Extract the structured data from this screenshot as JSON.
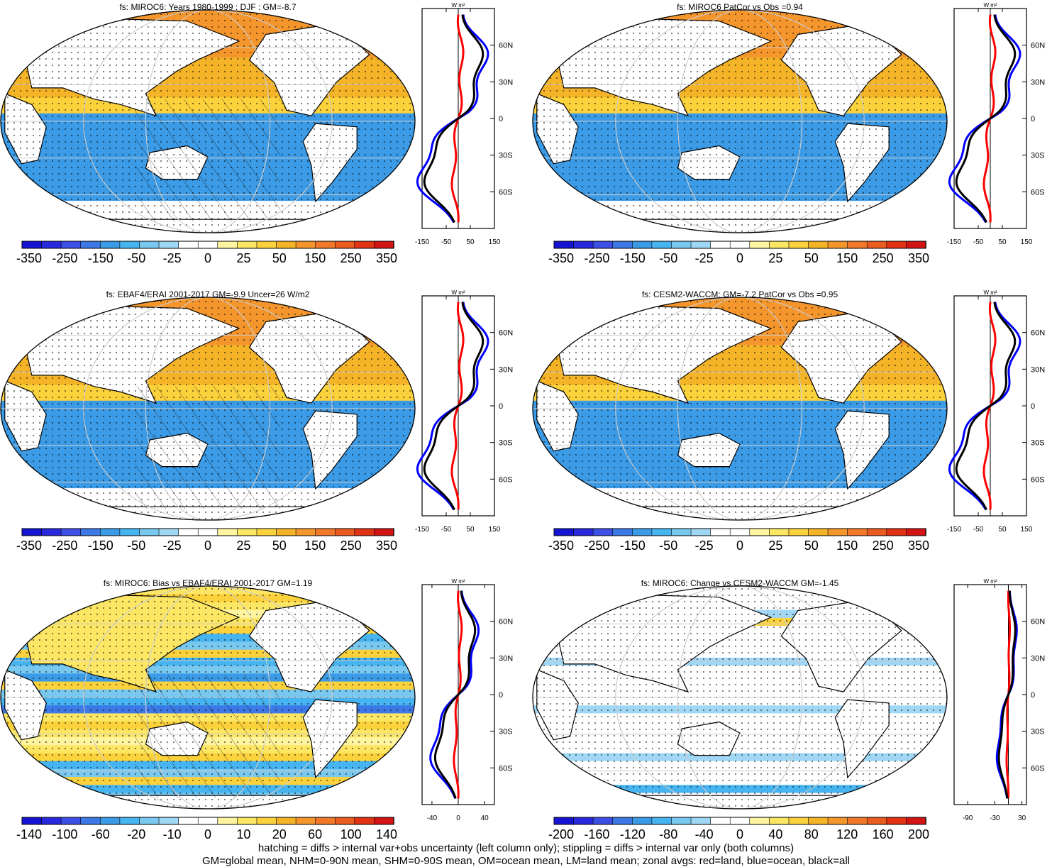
{
  "panels": [
    {
      "title": "fs: MIROC6: Years 1980-1999 : DJF : GM=-8.7",
      "colorbar_labels": [
        "-350",
        "-250",
        "-150",
        "-50",
        "-25",
        "0",
        "25",
        "50",
        "150",
        "250",
        "350"
      ],
      "zonal_ticks": [
        "-150",
        "-50",
        "50",
        "150"
      ],
      "zonal_range": [
        -150,
        150
      ],
      "map_pattern": "climatology",
      "hatching": true
    },
    {
      "title": "fs: MIROC6 PatCor vs Obs =0.94",
      "colorbar_labels": [
        "-350",
        "-250",
        "-150",
        "-50",
        "-25",
        "0",
        "25",
        "50",
        "150",
        "250",
        "350"
      ],
      "zonal_ticks": [
        "-150",
        "-50",
        "50",
        "150"
      ],
      "zonal_range": [
        -150,
        150
      ],
      "map_pattern": "climatology",
      "hatching": false
    },
    {
      "title": "fs: EBAF4/ERAI 2001-2017 GM=-9.9 Uncer=26 W/m2",
      "colorbar_labels": [
        "-350",
        "-250",
        "-150",
        "-50",
        "-25",
        "0",
        "25",
        "50",
        "150",
        "250",
        "350"
      ],
      "zonal_ticks": [
        "-150",
        "-50",
        "50",
        "150"
      ],
      "zonal_range": [
        -150,
        150
      ],
      "map_pattern": "climatology",
      "hatching": true
    },
    {
      "title": "fs: CESM2-WACCM: GM=-7.2 PatCor vs Obs =0.95",
      "colorbar_labels": [
        "-350",
        "-250",
        "-150",
        "-50",
        "-25",
        "0",
        "25",
        "50",
        "150",
        "250",
        "350"
      ],
      "zonal_ticks": [
        "-150",
        "-50",
        "50",
        "150"
      ],
      "zonal_range": [
        -150,
        150
      ],
      "map_pattern": "climatology",
      "hatching": false
    },
    {
      "title": "fs: MIROC6: Bias vs EBAF4/ERAI 2001-2017 GM=1.19",
      "colorbar_labels": [
        "-140",
        "-100",
        "-60",
        "-20",
        "-10",
        "0",
        "10",
        "20",
        "60",
        "100",
        "140"
      ],
      "zonal_ticks": [
        "-40",
        "0",
        "40"
      ],
      "zonal_range": [
        -55,
        55
      ],
      "map_pattern": "bias",
      "hatching": true
    },
    {
      "title": "fs: MIROC6: Change vs CESM2-WACCM GM=-1.45",
      "colorbar_labels": [
        "-200",
        "-160",
        "-120",
        "-80",
        "-40",
        "0",
        "40",
        "80",
        "120",
        "160",
        "200"
      ],
      "zonal_ticks": [
        "-90",
        "-30",
        "30"
      ],
      "zonal_range": [
        -120,
        40
      ],
      "map_pattern": "change",
      "hatching": false
    }
  ],
  "zonal_unit": "W m²",
  "lat_ticks": [
    "60N",
    "30N",
    "0",
    "30S",
    "60S"
  ],
  "palette": [
    "#1414d2",
    "#2828dc",
    "#3c50e6",
    "#3c78e6",
    "#3c9be6",
    "#46b4f0",
    "#78c8f0",
    "#a0d7f5",
    "#ffffff",
    "#ffffff",
    "#fff5a0",
    "#fce664",
    "#fcd23c",
    "#f5b428",
    "#f5962d",
    "#f07828",
    "#eb5a1e",
    "#e13214",
    "#d21414"
  ],
  "zonal_colors": {
    "land": "#ff0000",
    "ocean": "#0000ff",
    "all": "#000000"
  },
  "footer": {
    "line1": "hatching = diffs > internal var+obs uncertainty (left column only); stippling = diffs > internal var only (both columns)",
    "line2": "GM=global mean, NHM=0-90N mean, SHM=0-90S mean, OM=ocean mean, LM=land mean; zonal avgs: red=land, blue=ocean, black=all"
  },
  "chart_data": [
    {
      "type": "heatmap",
      "title": "fs: MIROC6: Years 1980-1999 : DJF : GM=-8.7",
      "colorbar": [
        -350,
        -250,
        -150,
        -50,
        -25,
        0,
        25,
        50,
        150,
        250,
        350
      ]
    },
    {
      "type": "heatmap",
      "title": "fs: MIROC6 PatCor vs Obs =0.94",
      "colorbar": [
        -350,
        -250,
        -150,
        -50,
        -25,
        0,
        25,
        50,
        150,
        250,
        350
      ]
    },
    {
      "type": "heatmap",
      "title": "fs: EBAF4/ERAI 2001-2017 GM=-9.9 Uncer=26 W/m2",
      "colorbar": [
        -350,
        -250,
        -150,
        -50,
        -25,
        0,
        25,
        50,
        150,
        250,
        350
      ]
    },
    {
      "type": "heatmap",
      "title": "fs: CESM2-WACCM: GM=-7.2 PatCor vs Obs =0.95",
      "colorbar": [
        -350,
        -250,
        -150,
        -50,
        -25,
        0,
        25,
        50,
        150,
        250,
        350
      ]
    },
    {
      "type": "heatmap",
      "title": "fs: MIROC6: Bias vs EBAF4/ERAI 2001-2017 GM=1.19",
      "colorbar": [
        -140,
        -100,
        -60,
        -20,
        -10,
        0,
        10,
        20,
        60,
        100,
        140
      ]
    },
    {
      "type": "heatmap",
      "title": "fs: MIROC6: Change vs CESM2-WACCM GM=-1.45",
      "colorbar": [
        -200,
        -160,
        -120,
        -80,
        -40,
        0,
        40,
        80,
        120,
        160,
        200
      ]
    }
  ]
}
